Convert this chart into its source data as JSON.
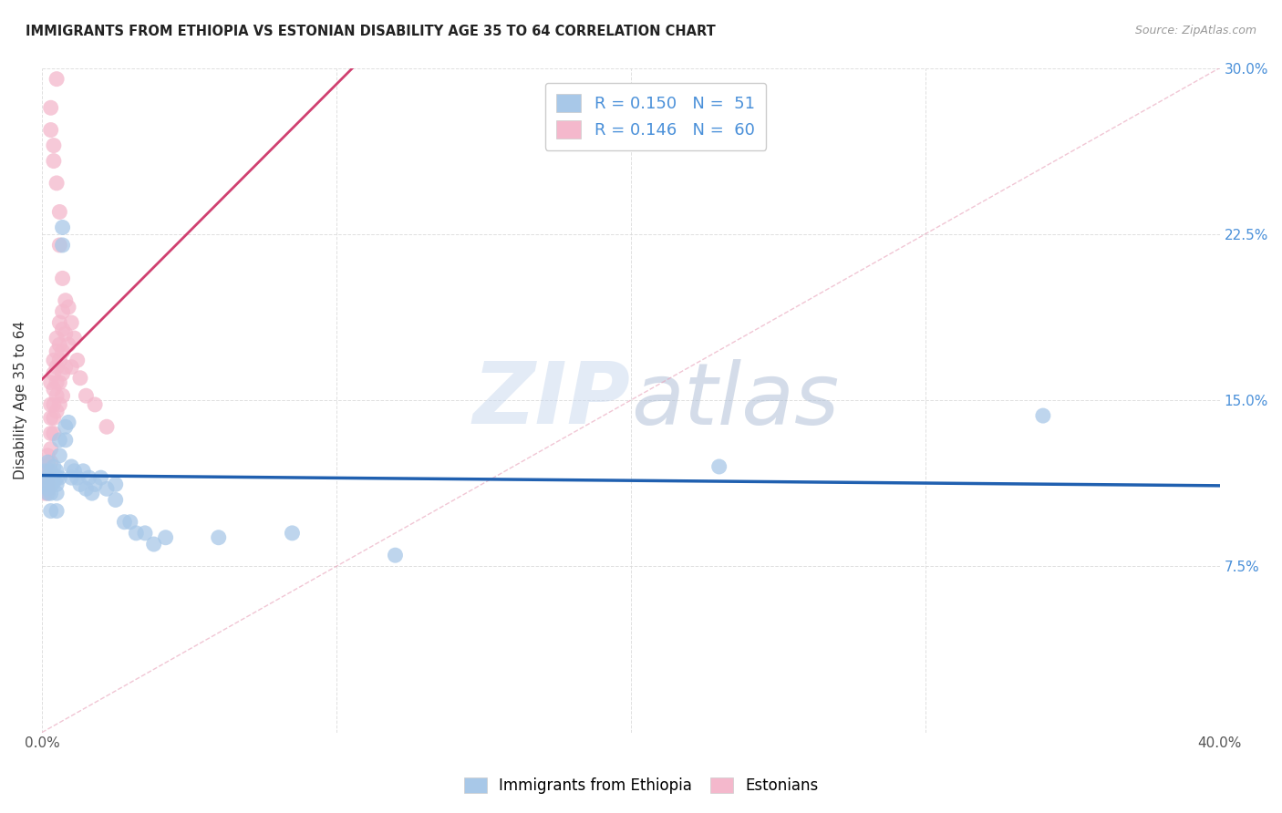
{
  "title": "IMMIGRANTS FROM ETHIOPIA VS ESTONIAN DISABILITY AGE 35 TO 64 CORRELATION CHART",
  "source": "Source: ZipAtlas.com",
  "ylabel": "Disability Age 35 to 64",
  "xlim": [
    0.0,
    0.4
  ],
  "ylim": [
    0.0,
    0.3
  ],
  "xticks": [
    0.0,
    0.1,
    0.2,
    0.3,
    0.4
  ],
  "yticks": [
    0.0,
    0.075,
    0.15,
    0.225,
    0.3
  ],
  "xticklabels": [
    "0.0%",
    "",
    "",
    "",
    "40.0%"
  ],
  "yticklabels_right": [
    "",
    "7.5%",
    "15.0%",
    "22.5%",
    "30.0%"
  ],
  "legend_label1": "Immigrants from Ethiopia",
  "legend_label2": "Estonians",
  "R1": "0.150",
  "N1": "51",
  "R2": "0.146",
  "N2": "60",
  "color_blue": "#a8c8e8",
  "color_pink": "#f4b8cc",
  "color_blue_line": "#2060b0",
  "color_pink_line": "#d04070",
  "color_diag_line": "#d0c0c8",
  "watermark_zip": "ZIP",
  "watermark_atlas": "atlas",
  "blue_x": [
    0.001,
    0.001,
    0.002,
    0.002,
    0.002,
    0.002,
    0.003,
    0.003,
    0.003,
    0.003,
    0.004,
    0.004,
    0.004,
    0.005,
    0.005,
    0.005,
    0.005,
    0.005,
    0.006,
    0.006,
    0.006,
    0.007,
    0.007,
    0.008,
    0.008,
    0.009,
    0.01,
    0.01,
    0.011,
    0.012,
    0.013,
    0.014,
    0.015,
    0.016,
    0.017,
    0.018,
    0.02,
    0.022,
    0.025,
    0.025,
    0.028,
    0.03,
    0.032,
    0.035,
    0.038,
    0.042,
    0.06,
    0.085,
    0.12,
    0.34,
    0.23
  ],
  "blue_y": [
    0.118,
    0.112,
    0.115,
    0.11,
    0.108,
    0.122,
    0.112,
    0.118,
    0.108,
    0.1,
    0.113,
    0.12,
    0.115,
    0.118,
    0.112,
    0.108,
    0.1,
    0.115,
    0.132,
    0.125,
    0.115,
    0.228,
    0.22,
    0.138,
    0.132,
    0.14,
    0.12,
    0.115,
    0.118,
    0.115,
    0.112,
    0.118,
    0.11,
    0.115,
    0.108,
    0.112,
    0.115,
    0.11,
    0.112,
    0.105,
    0.095,
    0.095,
    0.09,
    0.09,
    0.085,
    0.088,
    0.088,
    0.09,
    0.08,
    0.143,
    0.12
  ],
  "pink_x": [
    0.001,
    0.001,
    0.001,
    0.001,
    0.002,
    0.002,
    0.002,
    0.002,
    0.002,
    0.003,
    0.003,
    0.003,
    0.003,
    0.003,
    0.003,
    0.004,
    0.004,
    0.004,
    0.004,
    0.004,
    0.004,
    0.005,
    0.005,
    0.005,
    0.005,
    0.005,
    0.005,
    0.006,
    0.006,
    0.006,
    0.006,
    0.006,
    0.007,
    0.007,
    0.007,
    0.007,
    0.007,
    0.008,
    0.008,
    0.008,
    0.009,
    0.009,
    0.01,
    0.01,
    0.011,
    0.012,
    0.013,
    0.015,
    0.018,
    0.022,
    0.003,
    0.004,
    0.005,
    0.006,
    0.006,
    0.007,
    0.005,
    0.003,
    0.004,
    0.002
  ],
  "pink_y": [
    0.108,
    0.115,
    0.112,
    0.12,
    0.118,
    0.112,
    0.108,
    0.115,
    0.125,
    0.158,
    0.148,
    0.142,
    0.135,
    0.128,
    0.122,
    0.168,
    0.162,
    0.155,
    0.148,
    0.142,
    0.135,
    0.178,
    0.172,
    0.165,
    0.158,
    0.152,
    0.145,
    0.185,
    0.175,
    0.168,
    0.158,
    0.148,
    0.19,
    0.182,
    0.172,
    0.162,
    0.152,
    0.195,
    0.18,
    0.165,
    0.192,
    0.175,
    0.185,
    0.165,
    0.178,
    0.168,
    0.16,
    0.152,
    0.148,
    0.138,
    0.282,
    0.265,
    0.248,
    0.235,
    0.22,
    0.205,
    0.295,
    0.272,
    0.258,
    0.11
  ]
}
